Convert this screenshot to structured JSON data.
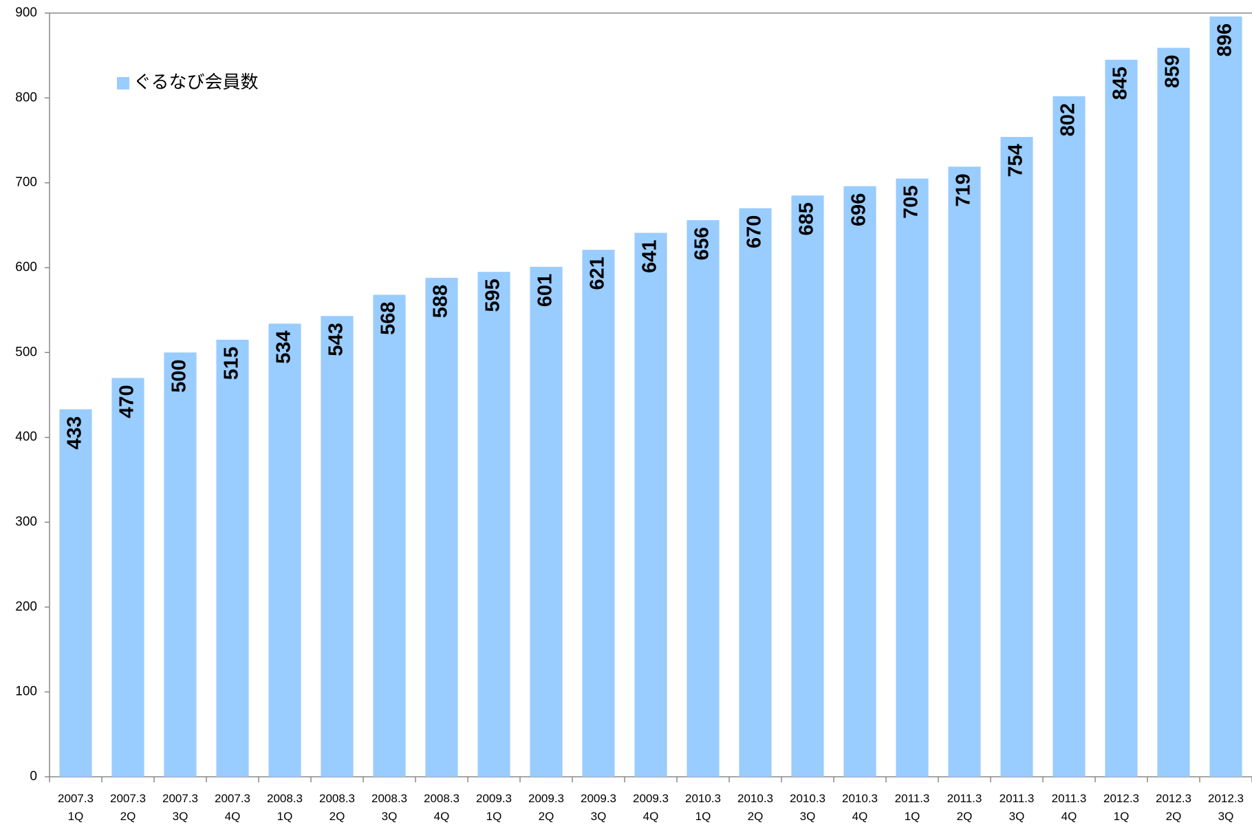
{
  "chart_data": {
    "type": "bar",
    "categories": [
      "2007.3\n1Q",
      "2007.3\n2Q",
      "2007.3\n3Q",
      "2007.3\n4Q",
      "2008.3\n1Q",
      "2008.3\n2Q",
      "2008.3\n3Q",
      "2008.3\n4Q",
      "2009.3\n1Q",
      "2009.3\n2Q",
      "2009.3\n3Q",
      "2009.3\n4Q",
      "2010.3\n1Q",
      "2010.3\n2Q",
      "2010.3\n3Q",
      "2010.3\n4Q",
      "2011.3\n1Q",
      "2011.3\n2Q",
      "2011.3\n3Q",
      "2011.3\n4Q",
      "2012.3\n1Q",
      "2012.3\n2Q",
      "2012.3\n3Q"
    ],
    "series": [
      {
        "name": "ぐるなび会員数",
        "color": "#99ccff",
        "values": [
          433,
          470,
          500,
          515,
          534,
          543,
          568,
          588,
          595,
          601,
          621,
          641,
          656,
          670,
          685,
          696,
          705,
          719,
          754,
          802,
          845,
          859,
          896
        ]
      }
    ],
    "ylim": [
      0,
      900
    ],
    "yticks": [
      0,
      100,
      200,
      300,
      400,
      500,
      600,
      700,
      800,
      900
    ],
    "grid": false,
    "legend": "top-left"
  }
}
